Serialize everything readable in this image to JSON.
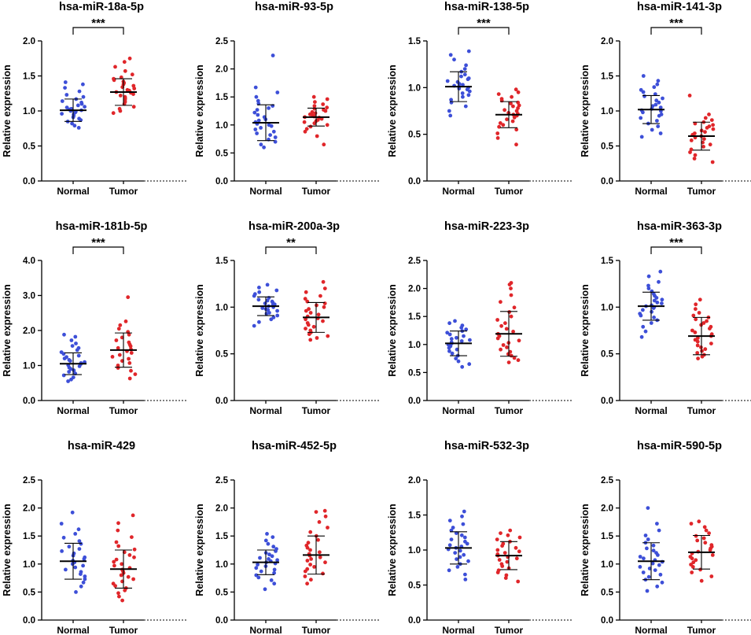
{
  "colors": {
    "normal": "#3d4fd8",
    "tumor": "#e0262a",
    "axis": "#000000"
  },
  "chart_data": [
    {
      "type": "scatter",
      "title": "hsa-miR-18a-5p",
      "ylabel": "Relative expression",
      "categories": [
        "Normal",
        "Tumor"
      ],
      "ylim": [
        0,
        2.0
      ],
      "yticks": [
        "0.0",
        "0.5",
        "1.0",
        "1.5",
        "2.0"
      ],
      "significance": "***",
      "series": [
        {
          "name": "Normal",
          "mean": 1.01,
          "sd": 0.16,
          "values": [
            0.76,
            0.79,
            0.82,
            0.85,
            0.87,
            0.89,
            0.91,
            0.93,
            0.95,
            0.96,
            0.98,
            0.99,
            1.0,
            1.01,
            1.02,
            1.03,
            1.05,
            1.06,
            1.08,
            1.1,
            1.12,
            1.14,
            1.17,
            1.2,
            1.23,
            1.28,
            1.33,
            1.38,
            1.41
          ]
        },
        {
          "name": "Tumor",
          "mean": 1.27,
          "sd": 0.19,
          "values": [
            0.97,
            1.0,
            1.03,
            1.06,
            1.1,
            1.13,
            1.16,
            1.18,
            1.2,
            1.22,
            1.24,
            1.26,
            1.27,
            1.29,
            1.3,
            1.32,
            1.34,
            1.36,
            1.38,
            1.4,
            1.42,
            1.44,
            1.46,
            1.48,
            1.52,
            1.57,
            1.63,
            1.7,
            1.75
          ]
        }
      ]
    },
    {
      "type": "scatter",
      "title": "hsa-miR-93-5p",
      "ylabel": "Relative expression",
      "categories": [
        "Normal",
        "Tumor"
      ],
      "ylim": [
        0,
        2.5
      ],
      "yticks": [
        "0.0",
        "0.5",
        "1.0",
        "1.5",
        "2.0",
        "2.5"
      ],
      "significance": "",
      "series": [
        {
          "name": "Normal",
          "mean": 1.04,
          "sd": 0.32,
          "values": [
            0.6,
            0.65,
            0.7,
            0.74,
            0.78,
            0.82,
            0.85,
            0.88,
            0.92,
            0.95,
            0.98,
            1.0,
            1.02,
            1.05,
            1.08,
            1.1,
            1.14,
            1.18,
            1.22,
            1.27,
            1.3,
            1.34,
            1.38,
            1.43,
            1.5,
            1.58,
            1.67,
            2.24
          ]
        },
        {
          "name": "Tumor",
          "mean": 1.14,
          "sd": 0.16,
          "values": [
            0.65,
            0.8,
            0.88,
            0.93,
            0.97,
            1.0,
            1.03,
            1.05,
            1.07,
            1.09,
            1.11,
            1.13,
            1.14,
            1.15,
            1.17,
            1.19,
            1.21,
            1.23,
            1.25,
            1.27,
            1.29,
            1.31,
            1.34,
            1.37,
            1.41,
            1.46,
            1.5
          ]
        }
      ]
    },
    {
      "type": "scatter",
      "title": "hsa-miR-138-5p",
      "ylabel": "Relative expression",
      "categories": [
        "Normal",
        "Tumor"
      ],
      "ylim": [
        0,
        1.5
      ],
      "yticks": [
        "0.0",
        "0.5",
        "1.0",
        "1.5"
      ],
      "significance": "***",
      "series": [
        {
          "name": "Normal",
          "mean": 1.01,
          "sd": 0.16,
          "values": [
            0.7,
            0.75,
            0.8,
            0.84,
            0.87,
            0.9,
            0.92,
            0.94,
            0.96,
            0.98,
            0.99,
            1.0,
            1.01,
            1.02,
            1.03,
            1.04,
            1.06,
            1.07,
            1.09,
            1.1,
            1.12,
            1.14,
            1.17,
            1.2,
            1.24,
            1.3,
            1.35,
            1.39
          ]
        },
        {
          "name": "Tumor",
          "mean": 0.71,
          "sd": 0.14,
          "values": [
            0.39,
            0.46,
            0.51,
            0.55,
            0.58,
            0.6,
            0.62,
            0.64,
            0.66,
            0.68,
            0.7,
            0.71,
            0.72,
            0.73,
            0.75,
            0.76,
            0.78,
            0.8,
            0.81,
            0.83,
            0.84,
            0.86,
            0.88,
            0.9,
            0.93,
            0.95,
            0.98
          ]
        }
      ]
    },
    {
      "type": "scatter",
      "title": "hsa-miR-141-3p",
      "ylabel": "Relative expression",
      "categories": [
        "Normal",
        "Tumor"
      ],
      "ylim": [
        0,
        2.0
      ],
      "yticks": [
        "0.0",
        "0.5",
        "1.0",
        "1.5",
        "2.0"
      ],
      "significance": "***",
      "series": [
        {
          "name": "Normal",
          "mean": 1.02,
          "sd": 0.2,
          "values": [
            0.63,
            0.68,
            0.73,
            0.78,
            0.82,
            0.86,
            0.9,
            0.93,
            0.95,
            0.98,
            1.0,
            1.01,
            1.03,
            1.05,
            1.07,
            1.09,
            1.12,
            1.15,
            1.18,
            1.21,
            1.24,
            1.27,
            1.3,
            1.34,
            1.38,
            1.43,
            1.5
          ]
        },
        {
          "name": "Tumor",
          "mean": 0.64,
          "sd": 0.2,
          "values": [
            0.27,
            0.32,
            0.37,
            0.41,
            0.45,
            0.49,
            0.52,
            0.55,
            0.58,
            0.6,
            0.62,
            0.64,
            0.66,
            0.68,
            0.7,
            0.72,
            0.74,
            0.76,
            0.78,
            0.8,
            0.82,
            0.84,
            0.87,
            0.9,
            0.95,
            1.22
          ]
        }
      ]
    },
    {
      "type": "scatter",
      "title": "hsa-miR-181b-5p",
      "ylabel": "Relative expression",
      "categories": [
        "Normal",
        "Tumor"
      ],
      "ylim": [
        0,
        4.0
      ],
      "yticks": [
        "0.0",
        "1.0",
        "2.0",
        "3.0",
        "4.0"
      ],
      "significance": "***",
      "series": [
        {
          "name": "Normal",
          "mean": 1.05,
          "sd": 0.31,
          "values": [
            0.55,
            0.6,
            0.66,
            0.72,
            0.77,
            0.82,
            0.86,
            0.9,
            0.94,
            0.98,
            1.01,
            1.04,
            1.07,
            1.1,
            1.13,
            1.16,
            1.2,
            1.24,
            1.28,
            1.33,
            1.38,
            1.44,
            1.5,
            1.56,
            1.63,
            1.72,
            1.82,
            1.88
          ]
        },
        {
          "name": "Tumor",
          "mean": 1.44,
          "sd": 0.49,
          "values": [
            0.63,
            0.75,
            0.85,
            0.93,
            1.0,
            1.07,
            1.13,
            1.19,
            1.25,
            1.3,
            1.36,
            1.41,
            1.46,
            1.5,
            1.55,
            1.6,
            1.66,
            1.72,
            1.8,
            1.88,
            1.96,
            2.05,
            2.15,
            2.26,
            2.95
          ]
        }
      ]
    },
    {
      "type": "scatter",
      "title": "hsa-miR-200a-3p",
      "ylabel": "Relative expression",
      "categories": [
        "Normal",
        "Tumor"
      ],
      "ylim": [
        0,
        1.5
      ],
      "yticks": [
        "0.0",
        "0.5",
        "1.0",
        "1.5"
      ],
      "significance": "**",
      "series": [
        {
          "name": "Normal",
          "mean": 1.01,
          "sd": 0.1,
          "values": [
            0.8,
            0.84,
            0.87,
            0.89,
            0.91,
            0.93,
            0.94,
            0.96,
            0.97,
            0.98,
            0.99,
            1.0,
            1.01,
            1.02,
            1.03,
            1.04,
            1.05,
            1.06,
            1.07,
            1.08,
            1.1,
            1.12,
            1.14,
            1.16,
            1.18,
            1.21,
            1.24
          ]
        },
        {
          "name": "Tumor",
          "mean": 0.89,
          "sd": 0.16,
          "values": [
            0.65,
            0.67,
            0.69,
            0.71,
            0.73,
            0.75,
            0.77,
            0.79,
            0.81,
            0.83,
            0.85,
            0.87,
            0.88,
            0.9,
            0.92,
            0.94,
            0.96,
            0.98,
            1.0,
            1.02,
            1.04,
            1.06,
            1.09,
            1.12,
            1.16,
            1.2,
            1.27
          ]
        }
      ]
    },
    {
      "type": "scatter",
      "title": "hsa-miR-223-3p",
      "ylabel": "Relative expression",
      "categories": [
        "Normal",
        "Tumor"
      ],
      "ylim": [
        0,
        2.5
      ],
      "yticks": [
        "0.0",
        "0.5",
        "1.0",
        "1.5",
        "2.0",
        "2.5"
      ],
      "significance": "",
      "series": [
        {
          "name": "Normal",
          "mean": 1.02,
          "sd": 0.22,
          "values": [
            0.6,
            0.65,
            0.7,
            0.75,
            0.8,
            0.84,
            0.88,
            0.91,
            0.94,
            0.97,
            1.0,
            1.02,
            1.04,
            1.06,
            1.08,
            1.1,
            1.12,
            1.15,
            1.18,
            1.21,
            1.24,
            1.27,
            1.3,
            1.34,
            1.38,
            1.42
          ]
        },
        {
          "name": "Tumor",
          "mean": 1.19,
          "sd": 0.4,
          "values": [
            0.68,
            0.72,
            0.76,
            0.8,
            0.83,
            0.87,
            0.91,
            0.95,
            0.99,
            1.03,
            1.07,
            1.11,
            1.15,
            1.19,
            1.23,
            1.28,
            1.33,
            1.38,
            1.44,
            1.5,
            1.58,
            1.66,
            1.76,
            1.88,
            2.0,
            2.07,
            2.1
          ]
        }
      ]
    },
    {
      "type": "scatter",
      "title": "hsa-miR-363-3p",
      "ylabel": "Relative expression",
      "categories": [
        "Normal",
        "Tumor"
      ],
      "ylim": [
        0,
        1.5
      ],
      "yticks": [
        "0.0",
        "0.5",
        "1.0",
        "1.5"
      ],
      "significance": "***",
      "series": [
        {
          "name": "Normal",
          "mean": 1.01,
          "sd": 0.15,
          "values": [
            0.68,
            0.74,
            0.79,
            0.83,
            0.86,
            0.89,
            0.91,
            0.93,
            0.95,
            0.97,
            0.99,
            1.0,
            1.01,
            1.02,
            1.04,
            1.05,
            1.07,
            1.08,
            1.1,
            1.12,
            1.14,
            1.17,
            1.2,
            1.23,
            1.27,
            1.33,
            1.38
          ]
        },
        {
          "name": "Tumor",
          "mean": 0.69,
          "sd": 0.2,
          "values": [
            0.45,
            0.47,
            0.49,
            0.51,
            0.53,
            0.55,
            0.57,
            0.59,
            0.61,
            0.63,
            0.65,
            0.67,
            0.69,
            0.71,
            0.73,
            0.75,
            0.77,
            0.79,
            0.81,
            0.83,
            0.85,
            0.87,
            0.89,
            0.91,
            0.94,
            0.98,
            1.03,
            1.08
          ]
        }
      ]
    },
    {
      "type": "scatter",
      "title": "hsa-miR-429",
      "ylabel": "Relative expression",
      "categories": [
        "Normal",
        "Tumor"
      ],
      "ylim": [
        0,
        2.5
      ],
      "yticks": [
        "0.0",
        "0.5",
        "1.0",
        "1.5",
        "2.0",
        "2.5"
      ],
      "significance": "",
      "series": [
        {
          "name": "Normal",
          "mean": 1.05,
          "sd": 0.32,
          "values": [
            0.5,
            0.6,
            0.67,
            0.73,
            0.78,
            0.82,
            0.86,
            0.9,
            0.94,
            0.97,
            1.0,
            1.03,
            1.06,
            1.09,
            1.12,
            1.15,
            1.19,
            1.23,
            1.27,
            1.31,
            1.36,
            1.41,
            1.47,
            1.54,
            1.62,
            1.72,
            1.92
          ]
        },
        {
          "name": "Tumor",
          "mean": 0.91,
          "sd": 0.34,
          "values": [
            0.35,
            0.42,
            0.48,
            0.53,
            0.57,
            0.61,
            0.65,
            0.69,
            0.73,
            0.77,
            0.8,
            0.84,
            0.87,
            0.9,
            0.93,
            0.97,
            1.0,
            1.04,
            1.08,
            1.12,
            1.16,
            1.21,
            1.26,
            1.32,
            1.39,
            1.48,
            1.6,
            1.73,
            1.87
          ]
        }
      ]
    },
    {
      "type": "scatter",
      "title": "hsa-miR-452-5p",
      "ylabel": "Relative expression",
      "categories": [
        "Normal",
        "Tumor"
      ],
      "ylim": [
        0,
        2.5
      ],
      "yticks": [
        "0.0",
        "0.5",
        "1.0",
        "1.5",
        "2.0",
        "2.5"
      ],
      "significance": "",
      "series": [
        {
          "name": "Normal",
          "mean": 1.03,
          "sd": 0.22,
          "values": [
            0.55,
            0.65,
            0.71,
            0.76,
            0.8,
            0.84,
            0.87,
            0.9,
            0.93,
            0.96,
            0.99,
            1.01,
            1.03,
            1.05,
            1.07,
            1.09,
            1.11,
            1.14,
            1.17,
            1.2,
            1.23,
            1.27,
            1.31,
            1.36,
            1.42,
            1.48,
            1.54
          ]
        },
        {
          "name": "Tumor",
          "mean": 1.16,
          "sd": 0.34,
          "values": [
            0.65,
            0.72,
            0.78,
            0.83,
            0.87,
            0.91,
            0.95,
            0.99,
            1.03,
            1.06,
            1.09,
            1.12,
            1.15,
            1.18,
            1.21,
            1.25,
            1.29,
            1.33,
            1.38,
            1.43,
            1.5,
            1.57,
            1.65,
            1.75,
            1.85,
            1.93,
            1.95
          ]
        }
      ]
    },
    {
      "type": "scatter",
      "title": "hsa-miR-532-3p",
      "ylabel": "Relative expression",
      "categories": [
        "Normal",
        "Tumor"
      ],
      "ylim": [
        0,
        2.0
      ],
      "yticks": [
        "0.0",
        "0.5",
        "1.0",
        "1.5",
        "2.0"
      ],
      "significance": "",
      "series": [
        {
          "name": "Normal",
          "mean": 1.03,
          "sd": 0.23,
          "values": [
            0.58,
            0.65,
            0.71,
            0.76,
            0.8,
            0.84,
            0.87,
            0.9,
            0.93,
            0.96,
            0.99,
            1.01,
            1.03,
            1.05,
            1.07,
            1.09,
            1.12,
            1.15,
            1.18,
            1.21,
            1.24,
            1.28,
            1.32,
            1.37,
            1.42,
            1.48,
            1.55
          ]
        },
        {
          "name": "Tumor",
          "mean": 0.92,
          "sd": 0.2,
          "values": [
            0.55,
            0.6,
            0.64,
            0.68,
            0.71,
            0.74,
            0.77,
            0.8,
            0.83,
            0.86,
            0.88,
            0.9,
            0.92,
            0.94,
            0.96,
            0.98,
            1.0,
            1.03,
            1.06,
            1.09,
            1.12,
            1.15,
            1.18,
            1.21,
            1.24,
            1.28
          ]
        }
      ]
    },
    {
      "type": "scatter",
      "title": "hsa-miR-590-5p",
      "ylabel": "Relative expression",
      "categories": [
        "Normal",
        "Tumor"
      ],
      "ylim": [
        0,
        2.5
      ],
      "yticks": [
        "0.0",
        "0.5",
        "1.0",
        "1.5",
        "2.0",
        "2.5"
      ],
      "significance": "",
      "series": [
        {
          "name": "Normal",
          "mean": 1.05,
          "sd": 0.33,
          "values": [
            0.52,
            0.6,
            0.67,
            0.72,
            0.77,
            0.81,
            0.85,
            0.89,
            0.92,
            0.95,
            0.98,
            1.01,
            1.04,
            1.07,
            1.1,
            1.13,
            1.16,
            1.2,
            1.24,
            1.28,
            1.33,
            1.38,
            1.44,
            1.51,
            1.6,
            1.72,
            2.0
          ]
        },
        {
          "name": "Tumor",
          "mean": 1.21,
          "sd": 0.3,
          "values": [
            0.7,
            0.78,
            0.85,
            0.9,
            0.95,
            0.99,
            1.03,
            1.07,
            1.1,
            1.13,
            1.16,
            1.19,
            1.22,
            1.25,
            1.28,
            1.31,
            1.34,
            1.38,
            1.42,
            1.46,
            1.5,
            1.55,
            1.6,
            1.66,
            1.72,
            1.76
          ]
        }
      ]
    }
  ]
}
